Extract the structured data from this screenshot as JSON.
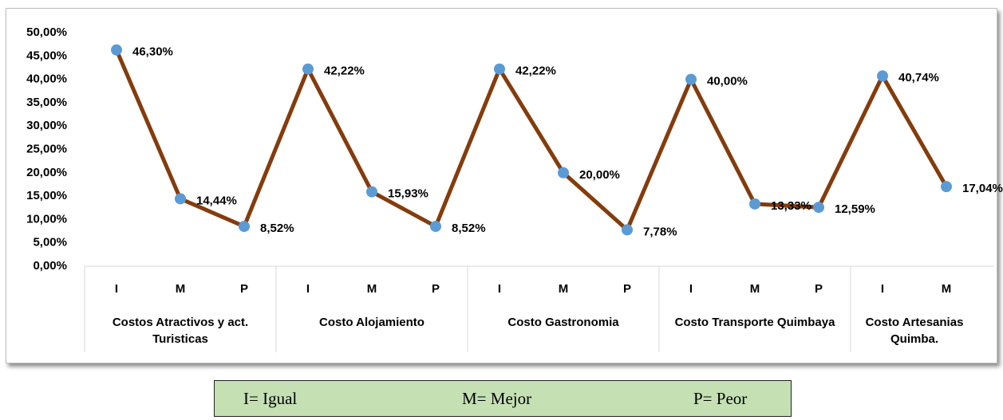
{
  "chart_data": {
    "type": "line",
    "categories": [
      "I",
      "M",
      "P",
      "I",
      "M",
      "P",
      "I",
      "M",
      "P",
      "I",
      "M",
      "P",
      "I",
      "M"
    ],
    "groups": [
      {
        "name": "Costos Atractivos y act. Turisticas",
        "size": 3
      },
      {
        "name": "Costo Alojamiento",
        "size": 3
      },
      {
        "name": "Costo Gastronomia",
        "size": 3
      },
      {
        "name": "Costo Transporte Quimbaya",
        "size": 3
      },
      {
        "name": "Costo Artesanias Quimba.",
        "size": 2
      }
    ],
    "series": [
      {
        "color": "#843c0c",
        "marker_color": "#5b9bd5",
        "values": [
          46.3,
          14.44,
          8.52,
          42.22,
          15.93,
          8.52,
          42.22,
          20.0,
          7.78,
          40.0,
          13.33,
          12.59,
          40.74,
          17.04
        ],
        "value_labels": [
          "46,30%",
          "14,44%",
          "8,52%",
          "42,22%",
          "15,93%",
          "8,52%",
          "42,22%",
          "20,00%",
          "7,78%",
          "40,00%",
          "13,33%",
          "12,59%",
          "40,74%",
          "17,04%"
        ]
      }
    ],
    "ylim": [
      0,
      50
    ],
    "yticks": [
      {
        "value": 0,
        "label": "0,00%"
      },
      {
        "value": 5,
        "label": "5,00%"
      },
      {
        "value": 10,
        "label": "10,00%"
      },
      {
        "value": 15,
        "label": "15,00%"
      },
      {
        "value": 20,
        "label": "20,00%"
      },
      {
        "value": 25,
        "label": "25,00%"
      },
      {
        "value": 30,
        "label": "30,00%"
      },
      {
        "value": 35,
        "label": "35,00%"
      },
      {
        "value": 40,
        "label": "40,00%"
      },
      {
        "value": 45,
        "label": "45,00%"
      },
      {
        "value": 50,
        "label": "50,00%"
      }
    ],
    "legend_box": [
      "I= Igual",
      "M= Mejor",
      "P= Peor"
    ]
  }
}
